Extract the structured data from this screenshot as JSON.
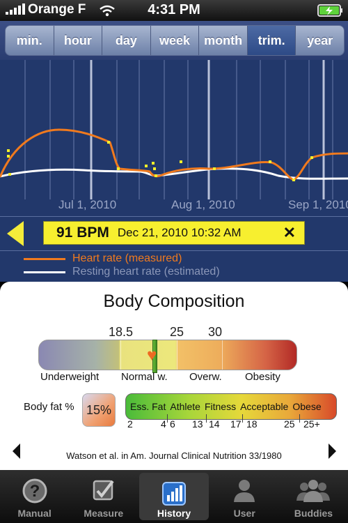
{
  "status": {
    "carrier": "Orange F",
    "time": "4:31 PM"
  },
  "segments": [
    "min.",
    "hour",
    "day",
    "week",
    "month",
    "trim.",
    "year"
  ],
  "selected_segment": "trim.",
  "chart": {
    "month_labels": [
      "Jul 1, 2010",
      "Aug 1, 2010",
      "Sep 1, 2010"
    ],
    "measured_color": "#f07a1e",
    "resting_color": "#ffffff",
    "marker_color": "#f4ef2a"
  },
  "readout": {
    "value": "91 BPM",
    "datetime": "Dec 21, 2010 10:32 AM",
    "close": "✕"
  },
  "legend": {
    "measured": "Heart rate (measured)",
    "resting": "Resting heart rate (estimated)"
  },
  "body_composition": {
    "title": "Body Composition",
    "bmi_thresholds": [
      "18.5",
      "25",
      "30"
    ],
    "bmi_categories": [
      "Underweight",
      "Normal w.",
      "Overw.",
      "Obesity"
    ],
    "body_fat_label": "Body fat %",
    "body_fat_value": "15%",
    "body_fat_categories": [
      "Ess. Fat",
      "Athlete",
      "Fitness",
      "Acceptable",
      "Obese"
    ],
    "body_fat_ticks": [
      "2",
      "4",
      "6",
      "13",
      "14",
      "17",
      "18",
      "25",
      "25+"
    ],
    "citation": "Watson et al. in Am. Journal Clinical Nutrition 33/1980"
  },
  "tabs": [
    {
      "label": "Manual",
      "icon": "question-icon"
    },
    {
      "label": "Measure",
      "icon": "measure-check-icon"
    },
    {
      "label": "History",
      "icon": "history-chart-icon"
    },
    {
      "label": "User",
      "icon": "user-icon"
    },
    {
      "label": "Buddies",
      "icon": "buddies-icon"
    }
  ],
  "active_tab": "History"
}
